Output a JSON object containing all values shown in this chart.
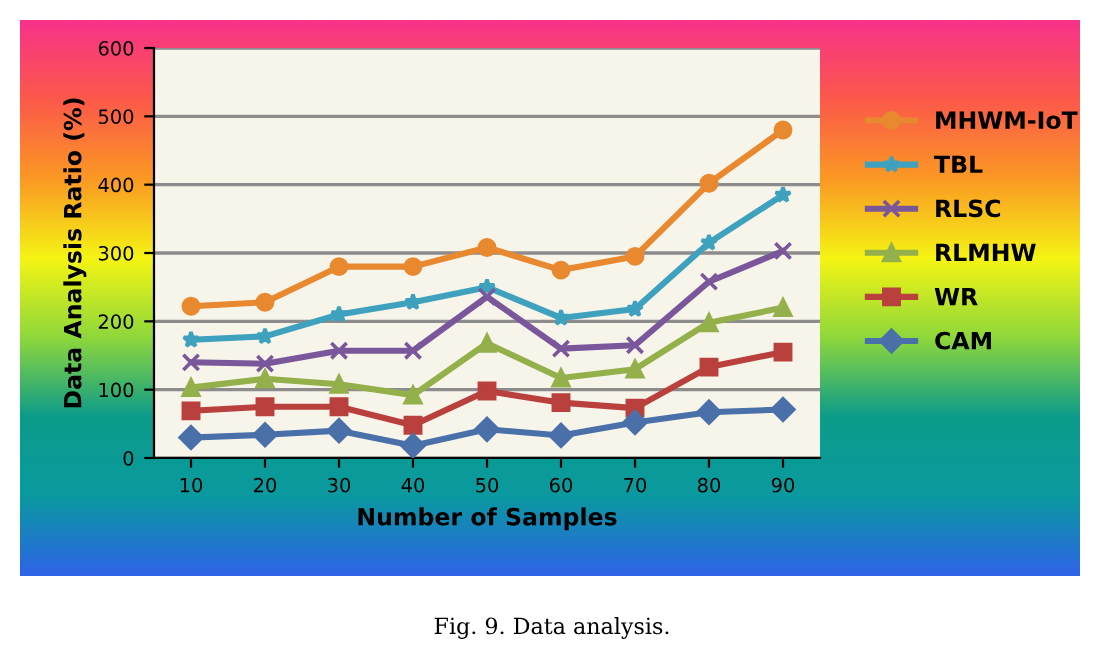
{
  "chart_data": {
    "type": "line",
    "xlabel": "Number of Samples",
    "ylabel": "Data Analysis Ratio (%)",
    "categories": [
      "10",
      "20",
      "30",
      "40",
      "50",
      "60",
      "70",
      "80",
      "90"
    ],
    "series": [
      {
        "name": "MHWM-IoT",
        "color": "#e8892f",
        "marker": "circle",
        "values": [
          222,
          228,
          280,
          280,
          308,
          275,
          295,
          402,
          480
        ]
      },
      {
        "name": "TBL",
        "color": "#3ea1bd",
        "marker": "star",
        "values": [
          173,
          178,
          210,
          228,
          250,
          205,
          218,
          315,
          385
        ]
      },
      {
        "name": "RLSC",
        "color": "#7a579a",
        "marker": "cross",
        "values": [
          140,
          138,
          157,
          157,
          236,
          160,
          165,
          258,
          303
        ]
      },
      {
        "name": "RLMHW",
        "color": "#93b04a",
        "marker": "triangle",
        "values": [
          103,
          116,
          108,
          92,
          168,
          117,
          130,
          198,
          220
        ]
      },
      {
        "name": "WR",
        "color": "#b9403c",
        "marker": "square",
        "values": [
          69,
          75,
          75,
          48,
          98,
          81,
          73,
          133,
          155
        ]
      },
      {
        "name": "CAM",
        "color": "#4a70aa",
        "marker": "diamond",
        "values": [
          30,
          34,
          40,
          18,
          42,
          33,
          52,
          67,
          71
        ]
      }
    ],
    "ylim": [
      0,
      600
    ],
    "yticks": [
      0,
      100,
      200,
      300,
      400,
      500,
      600
    ],
    "grid": "y",
    "legend": "right",
    "line_style": "solid",
    "annotations": [
      "Fig. 9. Data analysis."
    ]
  }
}
